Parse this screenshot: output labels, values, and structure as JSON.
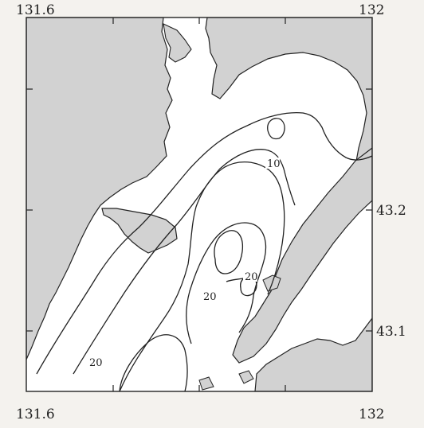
{
  "map": {
    "lon_labels": {
      "top_left": "131.6",
      "top_right": "132",
      "bottom_left": "131.6",
      "bottom_right": "132"
    },
    "lat_labels": [
      {
        "value": "43.2",
        "lat": 43.2
      },
      {
        "value": "43.1",
        "lat": 43.1
      }
    ],
    "contour_labels": [
      {
        "id": "c10",
        "text": "10"
      },
      {
        "id": "c20a",
        "text": "20"
      },
      {
        "id": "c20b",
        "text": "20"
      },
      {
        "id": "c20c",
        "text": "20"
      }
    ],
    "colors": {
      "land": "#d2d2d2",
      "line": "#222222",
      "water": "#ffffff",
      "paper": "#f4f2ee"
    }
  }
}
